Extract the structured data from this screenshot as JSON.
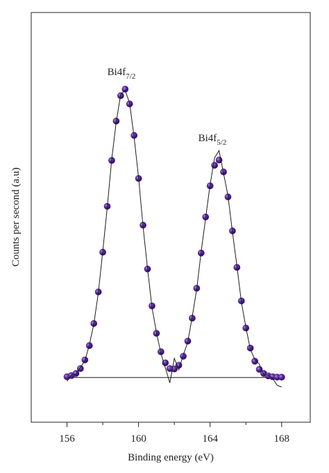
{
  "chart_data": {
    "type": "scatter",
    "xlabel": "Binding energy (eV)",
    "ylabel": "Counts per second (a.u)",
    "annotations": [
      {
        "text": "Bi4f",
        "sub": "7/2"
      },
      {
        "text": "Bi4f",
        "sub": "5/2"
      }
    ],
    "xlim": [
      154,
      169.6
    ],
    "ylim": [
      0,
      100
    ],
    "xticks": [
      156,
      160,
      164,
      168
    ],
    "xminorticks": [
      158,
      162,
      166
    ],
    "x": [
      156.0,
      156.25,
      156.5,
      156.75,
      157.0,
      157.25,
      157.5,
      157.75,
      158.0,
      158.25,
      158.5,
      158.75,
      159.0,
      159.25,
      159.5,
      159.75,
      160.0,
      160.25,
      160.5,
      160.75,
      161.0,
      161.25,
      161.5,
      161.75,
      162.0,
      162.25,
      162.5,
      162.75,
      163.0,
      163.25,
      163.5,
      163.75,
      164.0,
      164.25,
      164.5,
      164.75,
      165.0,
      165.25,
      165.5,
      165.75,
      166.0,
      166.25,
      166.5,
      166.75,
      167.0,
      167.25,
      167.5,
      167.75,
      168.0
    ],
    "series": [
      {
        "style": "markers",
        "color": "#5b2a9e",
        "values": [
          11.1,
          11.4,
          11.9,
          13.1,
          15.2,
          18.7,
          24.1,
          31.8,
          41.5,
          52.7,
          63.9,
          73.5,
          79.7,
          81.3,
          77.7,
          70.0,
          59.5,
          48.1,
          37.4,
          28.4,
          21.7,
          17.2,
          14.5,
          13.1,
          13.0,
          13.9,
          16.1,
          19.8,
          25.4,
          32.7,
          41.3,
          50.1,
          57.7,
          62.7,
          64.0,
          61.1,
          55.0,
          46.7,
          37.8,
          29.6,
          23.0,
          18.1,
          14.9,
          12.9,
          11.9,
          11.3,
          11.1,
          11.0,
          11.0
        ]
      },
      {
        "style": "line",
        "color": "#1a1a1a",
        "values": [
          10.0,
          11.6,
          11.7,
          13.4,
          15.0,
          18.9,
          24.0,
          31.5,
          41.8,
          52.4,
          64.2,
          73.2,
          80.0,
          81.0,
          77.9,
          69.6,
          59.8,
          47.8,
          37.6,
          28.1,
          21.9,
          16.8,
          13.2,
          9.6,
          15.6,
          12.8,
          16.4,
          19.5,
          25.7,
          32.4,
          41.6,
          49.8,
          58.0,
          64.5,
          66.3,
          60.8,
          55.3,
          46.4,
          38.1,
          29.3,
          23.2,
          17.8,
          15.3,
          14.2,
          11.6,
          11.5,
          10.7,
          9.0,
          8.6
        ]
      }
    ],
    "baseline": {
      "color": "#1a1a1a",
      "x": [
        156.2,
        167.8
      ],
      "values": [
        10.9,
        10.9
      ]
    }
  }
}
